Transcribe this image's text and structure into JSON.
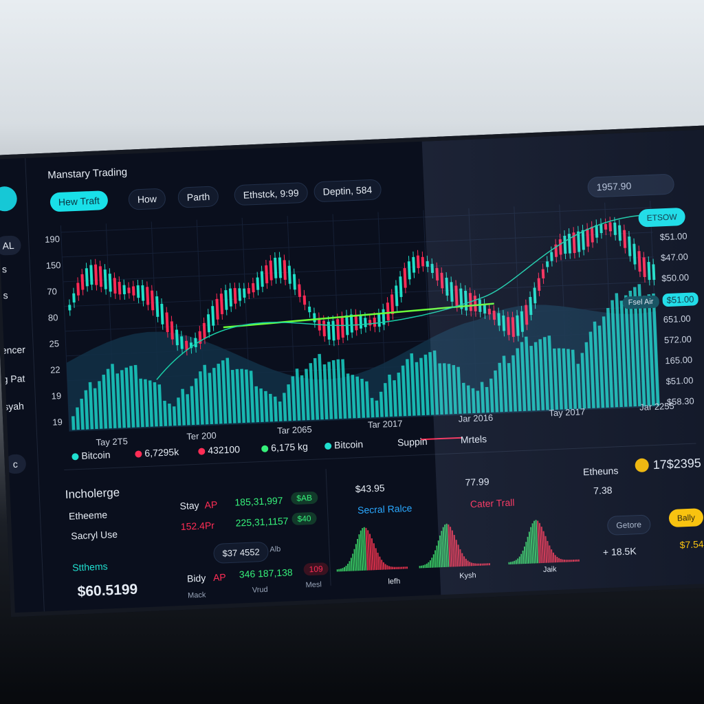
{
  "header": {
    "title": "Manstary Trading",
    "toolbar": [
      "Hew Traft",
      "How",
      "Parth",
      "Ethstck, 9:99",
      "Deptin, 584"
    ],
    "search": "1957.90",
    "action": "ETSOW"
  },
  "sidebar": [
    "AL",
    "s",
    "s",
    "encer",
    "g Pat",
    "syah",
    "c"
  ],
  "chart": {
    "left_axis": [
      "190",
      "150",
      "70",
      "80",
      "25",
      "22",
      "19",
      "19"
    ],
    "right_axis": [
      "$51.00",
      "$47.00",
      "$50.00",
      "$51.00",
      "651.00",
      "572.00",
      "165.00",
      "$51.00",
      "$58.30"
    ],
    "price_tag": "Fsel Air",
    "x_labels": [
      "Tay 2T5",
      "Ter 200",
      "Tar 2065",
      "Tar 2017",
      "Jar 2016",
      "Tay 2017",
      "Jar 2255"
    ],
    "legend": [
      "Bitcoin",
      "6,7295k",
      "432100",
      "6,175 kg",
      "Bitcoin",
      "Suppin",
      "Mrtels"
    ]
  },
  "orders": {
    "title": "Incholerge",
    "items": [
      "Etheeme",
      "Sacryl Use"
    ],
    "section": "Stthems",
    "total": "$60.5199",
    "rows": [
      [
        "Stay",
        "AP",
        "185,31,997",
        "$AB"
      ],
      [
        "152.4Pr",
        "225,31,1157",
        "$40"
      ]
    ],
    "input": "$37 4552",
    "input_unit": "Alb",
    "bid": [
      "Bidy",
      "AP",
      "346 187,138",
      "109"
    ],
    "footer": [
      "Mack",
      "Vrud",
      "Mesl"
    ]
  },
  "depth": {
    "price": "$43.95",
    "label": "Secral Ralce",
    "alt_price": "77.99",
    "alt_label": "Cater Trall",
    "hist_labels": [
      "lefh",
      "Kysh",
      "Jaik"
    ]
  },
  "summary": {
    "name": "Etheuns",
    "amount": "17$2395",
    "sub": "7.38",
    "secondary": "Getore",
    "primary": "Bally",
    "change": "+ 18.5K",
    "fee": "$7.54"
  }
}
